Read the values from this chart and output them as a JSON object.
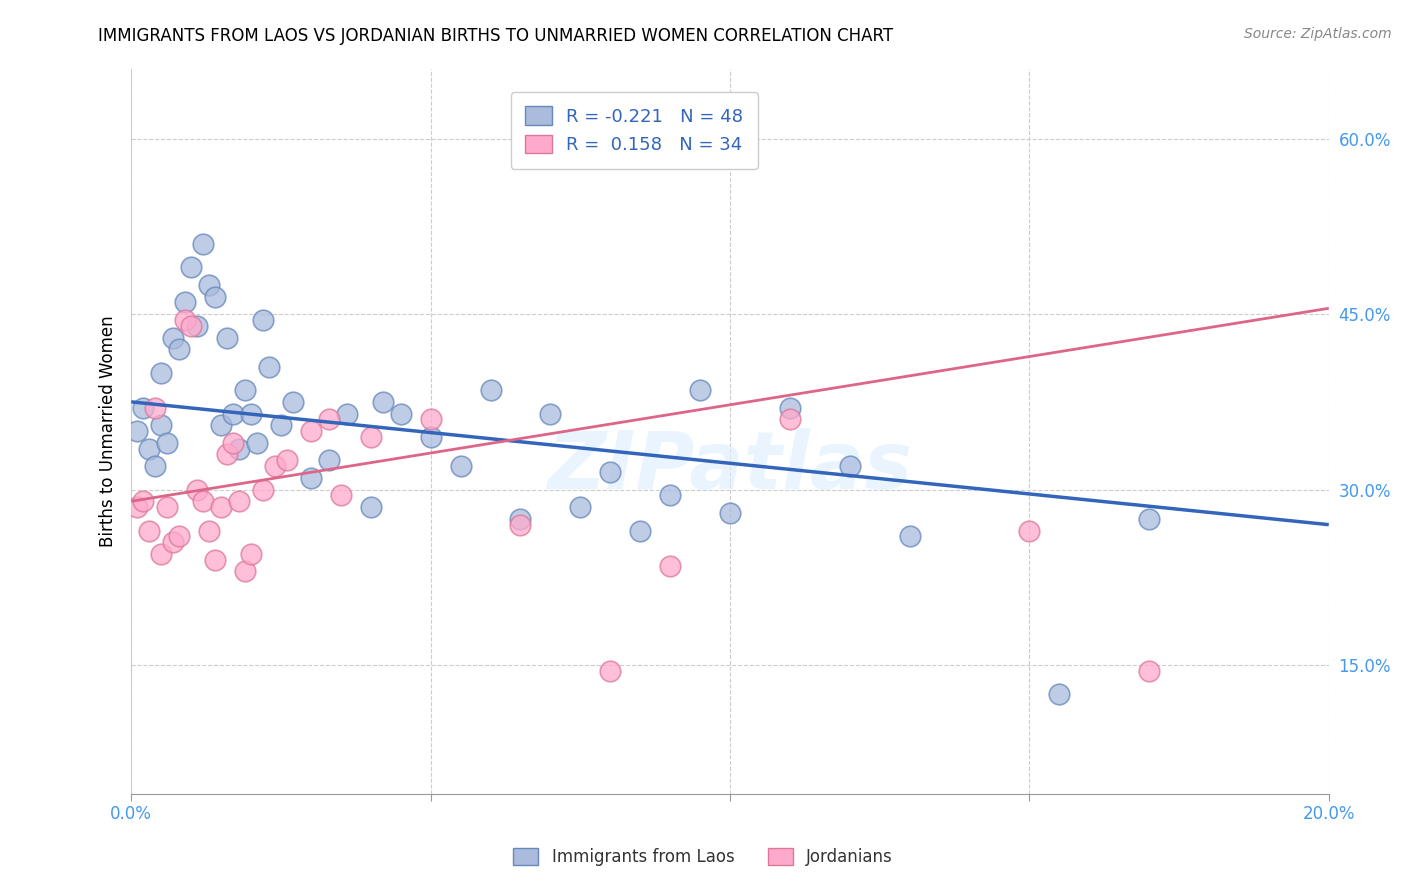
{
  "title": "IMMIGRANTS FROM LAOS VS JORDANIAN BIRTHS TO UNMARRIED WOMEN CORRELATION CHART",
  "source": "Source: ZipAtlas.com",
  "ylabel": "Births to Unmarried Women",
  "legend_label1": "Immigrants from Laos",
  "legend_label2": "Jordanians",
  "legend_r1": "R = -0.221",
  "legend_n1": "N = 48",
  "legend_r2": "R =  0.158",
  "legend_n2": "N = 34",
  "xlim": [
    0.0,
    0.2
  ],
  "ylim": [
    0.04,
    0.66
  ],
  "xticks": [
    0.0,
    0.05,
    0.1,
    0.15,
    0.2
  ],
  "yticks": [
    0.15,
    0.3,
    0.45,
    0.6
  ],
  "ytick_labels": [
    "15.0%",
    "30.0%",
    "45.0%",
    "60.0%"
  ],
  "xtick_labels": [
    "0.0%",
    "",
    "",
    "",
    "20.0%"
  ],
  "color_blue": "#AABBDD",
  "color_pink": "#FFAACC",
  "edge_blue": "#6688BB",
  "edge_pink": "#DD7799",
  "line_blue": "#3366BB",
  "line_pink": "#DD6688",
  "watermark": "ZIPatlas",
  "blue_x": [
    0.001,
    0.002,
    0.003,
    0.004,
    0.005,
    0.005,
    0.006,
    0.007,
    0.008,
    0.009,
    0.01,
    0.011,
    0.012,
    0.013,
    0.014,
    0.015,
    0.016,
    0.017,
    0.018,
    0.019,
    0.02,
    0.021,
    0.022,
    0.023,
    0.025,
    0.027,
    0.03,
    0.033,
    0.036,
    0.04,
    0.042,
    0.045,
    0.05,
    0.055,
    0.06,
    0.065,
    0.07,
    0.075,
    0.08,
    0.085,
    0.09,
    0.095,
    0.1,
    0.11,
    0.12,
    0.13,
    0.155,
    0.17
  ],
  "blue_y": [
    0.35,
    0.37,
    0.335,
    0.32,
    0.355,
    0.4,
    0.34,
    0.43,
    0.42,
    0.46,
    0.49,
    0.44,
    0.51,
    0.475,
    0.465,
    0.355,
    0.43,
    0.365,
    0.335,
    0.385,
    0.365,
    0.34,
    0.445,
    0.405,
    0.355,
    0.375,
    0.31,
    0.325,
    0.365,
    0.285,
    0.375,
    0.365,
    0.345,
    0.32,
    0.385,
    0.275,
    0.365,
    0.285,
    0.315,
    0.265,
    0.295,
    0.385,
    0.28,
    0.37,
    0.32,
    0.26,
    0.125,
    0.275
  ],
  "pink_x": [
    0.001,
    0.002,
    0.003,
    0.004,
    0.005,
    0.006,
    0.007,
    0.008,
    0.009,
    0.01,
    0.011,
    0.012,
    0.013,
    0.014,
    0.015,
    0.016,
    0.017,
    0.018,
    0.019,
    0.02,
    0.022,
    0.024,
    0.026,
    0.03,
    0.033,
    0.035,
    0.04,
    0.05,
    0.065,
    0.08,
    0.09,
    0.11,
    0.15,
    0.17
  ],
  "pink_y": [
    0.285,
    0.29,
    0.265,
    0.37,
    0.245,
    0.285,
    0.255,
    0.26,
    0.445,
    0.44,
    0.3,
    0.29,
    0.265,
    0.24,
    0.285,
    0.33,
    0.34,
    0.29,
    0.23,
    0.245,
    0.3,
    0.32,
    0.325,
    0.35,
    0.36,
    0.295,
    0.345,
    0.36,
    0.27,
    0.145,
    0.235,
    0.36,
    0.265,
    0.145
  ],
  "blue_line_x0": 0.0,
  "blue_line_y0": 0.375,
  "blue_line_x1": 0.2,
  "blue_line_y1": 0.27,
  "pink_line_x0": 0.0,
  "pink_line_y0": 0.29,
  "pink_line_x1": 0.2,
  "pink_line_y1": 0.455
}
